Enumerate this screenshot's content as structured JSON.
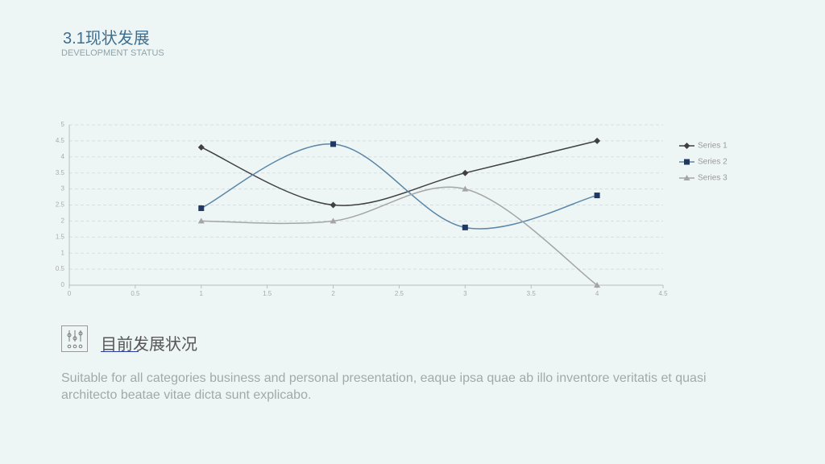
{
  "header": {
    "title": "3.1现状发展",
    "subtitle": "DEVELOPMENT STATUS"
  },
  "chart_data": {
    "type": "line",
    "smooth": true,
    "x": [
      1,
      2,
      3,
      4
    ],
    "series": [
      {
        "name": "Series 1",
        "color": "#404040",
        "marker": "diamond",
        "marker_color": "#404040",
        "values": [
          4.3,
          2.5,
          3.5,
          4.5
        ]
      },
      {
        "name": "Series 2",
        "color": "#5b87a8",
        "marker": "square",
        "marker_color": "#1f3864",
        "values": [
          2.4,
          4.4,
          1.8,
          2.8
        ]
      },
      {
        "name": "Series 3",
        "color": "#a5a5a5",
        "marker": "triangle",
        "marker_color": "#a5a5a5",
        "values": [
          2,
          2,
          3,
          0
        ]
      }
    ],
    "xlim": [
      0,
      4.5
    ],
    "xticks": [
      0,
      0.5,
      1,
      1.5,
      2,
      2.5,
      3,
      3.5,
      4,
      4.5
    ],
    "ylim": [
      0,
      5
    ],
    "yticks": [
      0,
      0.5,
      1,
      1.5,
      2,
      2.5,
      3,
      3.5,
      4,
      4.5,
      5
    ],
    "grid": true,
    "legend": "right"
  },
  "section": {
    "heading": "目前发展状况",
    "text": "Suitable for all categories business and personal presentation, eaque ipsa quae ab illo inventore veritatis et quasi architecto beatae vitae dicta sunt explicabo."
  }
}
